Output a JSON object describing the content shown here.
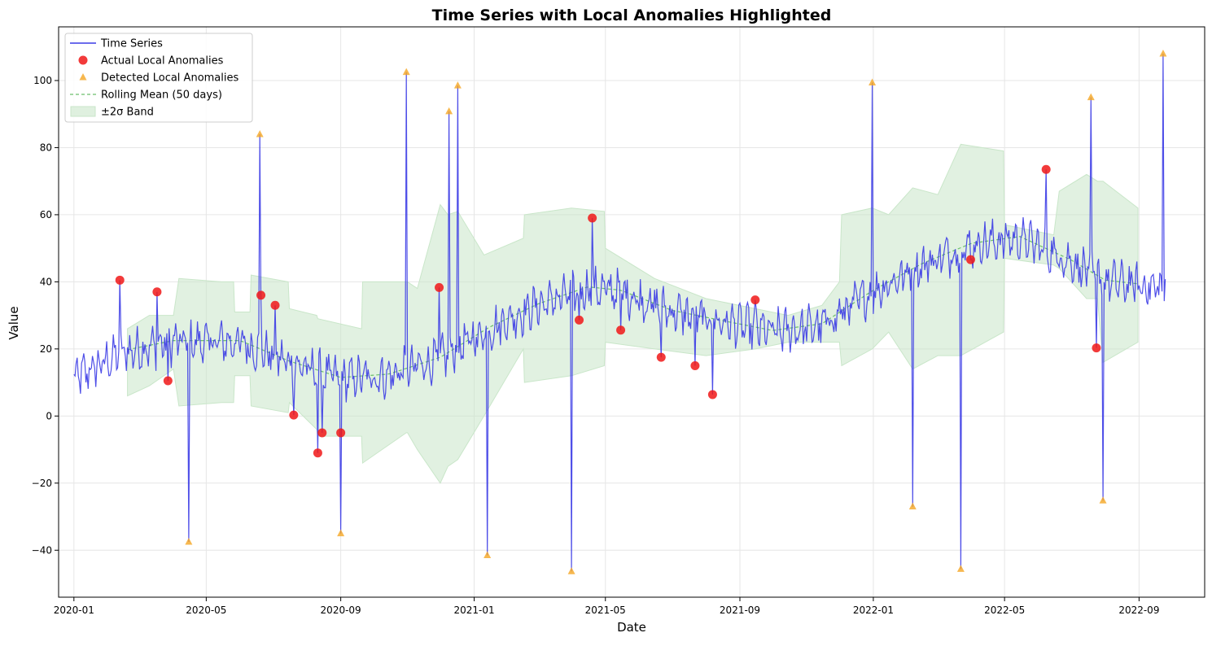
{
  "chart_data": {
    "type": "line",
    "title": "Time Series with Local Anomalies Highlighted",
    "xlabel": "Date",
    "ylabel": "Value",
    "xlim": [
      "2019-12-18",
      "2022-10-31"
    ],
    "ylim": [
      -54,
      116
    ],
    "grid": true,
    "legend_position": "top-left",
    "x_ticks": [
      "2020-01-01",
      "2020-05-01",
      "2020-09-01",
      "2021-01-01",
      "2021-05-01",
      "2021-09-01",
      "2022-01-01",
      "2022-05-01",
      "2022-09-01"
    ],
    "x_tick_labels": [
      "2020-01",
      "2020-05",
      "2020-09",
      "2021-01",
      "2021-05",
      "2021-09",
      "2022-01",
      "2022-05",
      "2022-09"
    ],
    "y_ticks": [
      -40,
      -20,
      0,
      20,
      40,
      60,
      80,
      100
    ],
    "y_tick_labels": [
      "−40",
      "−20",
      "0",
      "20",
      "40",
      "60",
      "80",
      "100"
    ],
    "colors": {
      "series": "#3b3be6",
      "actual": "#f01818",
      "detected": "#f5a623",
      "rolling": "#6cbf6c",
      "band": "#c9e6c9"
    },
    "legend": [
      {
        "label": "Time Series",
        "kind": "line"
      },
      {
        "label": "Actual Local Anomalies",
        "kind": "circle"
      },
      {
        "label": "Detected Local Anomalies",
        "kind": "triangle"
      },
      {
        "label": "Rolling Mean (50 days)",
        "kind": "dash"
      },
      {
        "label": "±2σ Band",
        "kind": "patch"
      }
    ],
    "series": [
      {
        "name": "Time Series",
        "start": "2020-01-01",
        "end": "2022-09-25",
        "note": "daily values; baseline trend points (date, value)",
        "trend": [
          [
            "2020-01-01",
            11
          ],
          [
            "2020-02-15",
            19
          ],
          [
            "2020-04-01",
            22
          ],
          [
            "2020-06-01",
            22
          ],
          [
            "2020-07-15",
            16
          ],
          [
            "2020-09-01",
            11
          ],
          [
            "2020-10-15",
            12
          ],
          [
            "2020-12-01",
            17
          ],
          [
            "2021-01-15",
            26
          ],
          [
            "2021-03-01",
            33
          ],
          [
            "2021-04-15",
            38
          ],
          [
            "2021-05-15",
            37
          ],
          [
            "2021-07-01",
            31
          ],
          [
            "2021-08-15",
            28
          ],
          [
            "2021-10-01",
            25
          ],
          [
            "2021-11-15",
            27
          ],
          [
            "2022-01-01",
            37
          ],
          [
            "2022-02-15",
            45
          ],
          [
            "2022-04-01",
            51
          ],
          [
            "2022-05-15",
            53
          ],
          [
            "2022-07-01",
            46
          ],
          [
            "2022-08-01",
            40
          ],
          [
            "2022-09-25",
            38
          ]
        ]
      },
      {
        "name": "Actual Local Anomalies",
        "points": [
          [
            "2020-02-12",
            40.5
          ],
          [
            "2020-03-17",
            37
          ],
          [
            "2020-03-27",
            10.5
          ],
          [
            "2020-06-20",
            36
          ],
          [
            "2020-07-03",
            33
          ],
          [
            "2020-07-20",
            0.3
          ],
          [
            "2020-08-11",
            -11
          ],
          [
            "2020-08-15",
            -5
          ],
          [
            "2020-09-01",
            -5
          ],
          [
            "2020-11-30",
            38.3
          ],
          [
            "2021-04-07",
            28.6
          ],
          [
            "2021-04-19",
            59
          ],
          [
            "2021-05-15",
            25.6
          ],
          [
            "2021-06-21",
            17.5
          ],
          [
            "2021-07-22",
            15
          ],
          [
            "2021-08-07",
            6.4
          ],
          [
            "2021-09-15",
            34.6
          ],
          [
            "2022-03-31",
            46.6
          ],
          [
            "2022-06-08",
            73.5
          ],
          [
            "2022-07-24",
            20.3
          ]
        ]
      },
      {
        "name": "Detected Local Anomalies",
        "points": [
          [
            "2020-04-15",
            -37.5
          ],
          [
            "2020-06-19",
            84
          ],
          [
            "2020-09-01",
            -35
          ],
          [
            "2020-10-31",
            102.5
          ],
          [
            "2020-12-09",
            90.8
          ],
          [
            "2020-12-17",
            98.5
          ],
          [
            "2021-01-13",
            -41.5
          ],
          [
            "2021-03-31",
            -46.3
          ],
          [
            "2021-12-31",
            99.4
          ],
          [
            "2022-02-06",
            -27
          ],
          [
            "2022-03-22",
            -45.6
          ],
          [
            "2022-07-19",
            95
          ],
          [
            "2022-07-30",
            -25.2
          ],
          [
            "2022-09-23",
            108
          ]
        ]
      },
      {
        "name": "Rolling Mean (50 days)",
        "start": "2020-02-19",
        "end": "2022-08-31"
      },
      {
        "name": "±2σ Band",
        "segments": [
          [
            "2020-02-19",
            6,
            26
          ],
          [
            "2020-03-10",
            9,
            30
          ],
          [
            "2020-04-01",
            14,
            30
          ],
          [
            "2020-04-06",
            3,
            41
          ],
          [
            "2020-05-15",
            4,
            40
          ],
          [
            "2020-05-26",
            4,
            40
          ],
          [
            "2020-05-27",
            12,
            31
          ],
          [
            "2020-06-10",
            12,
            31
          ],
          [
            "2020-06-11",
            3,
            42
          ],
          [
            "2020-07-15",
            1,
            40
          ],
          [
            "2020-07-16",
            4,
            32
          ],
          [
            "2020-08-10",
            -4,
            30
          ],
          [
            "2020-08-11",
            -6,
            29
          ],
          [
            "2020-09-20",
            -6,
            26
          ],
          [
            "2020-09-21",
            -14,
            40
          ],
          [
            "2020-10-31",
            -5,
            40
          ],
          [
            "2020-11-01",
            -5,
            40
          ],
          [
            "2020-11-10",
            -10,
            38
          ],
          [
            "2020-12-01",
            -20,
            63
          ],
          [
            "2020-12-08",
            -15,
            60
          ],
          [
            "2020-12-17",
            -13,
            61
          ],
          [
            "2021-01-10",
            0,
            48
          ],
          [
            "2021-02-15",
            20,
            53
          ],
          [
            "2021-02-16",
            10,
            60
          ],
          [
            "2021-03-31",
            12,
            62
          ],
          [
            "2021-04-30",
            15,
            61
          ],
          [
            "2021-05-01",
            22,
            50
          ],
          [
            "2021-06-15",
            20,
            41
          ],
          [
            "2021-08-01",
            18,
            35
          ],
          [
            "2021-09-15",
            20,
            32
          ],
          [
            "2021-10-15",
            22,
            30
          ],
          [
            "2021-11-15",
            22,
            33
          ],
          [
            "2021-12-01",
            22,
            40
          ],
          [
            "2021-12-03",
            15,
            60
          ],
          [
            "2021-12-31",
            20,
            62
          ],
          [
            "2022-01-15",
            25,
            60
          ],
          [
            "2022-02-06",
            14,
            68
          ],
          [
            "2022-03-01",
            18,
            66
          ],
          [
            "2022-03-22",
            18,
            81
          ],
          [
            "2022-04-30",
            25,
            79
          ],
          [
            "2022-05-01",
            47,
            57
          ],
          [
            "2022-06-15",
            45,
            54
          ],
          [
            "2022-06-20",
            44,
            67
          ],
          [
            "2022-07-15",
            35,
            72
          ],
          [
            "2022-07-25",
            35,
            70
          ],
          [
            "2022-07-30",
            16,
            70
          ],
          [
            "2022-08-31",
            22,
            62
          ]
        ]
      }
    ]
  }
}
